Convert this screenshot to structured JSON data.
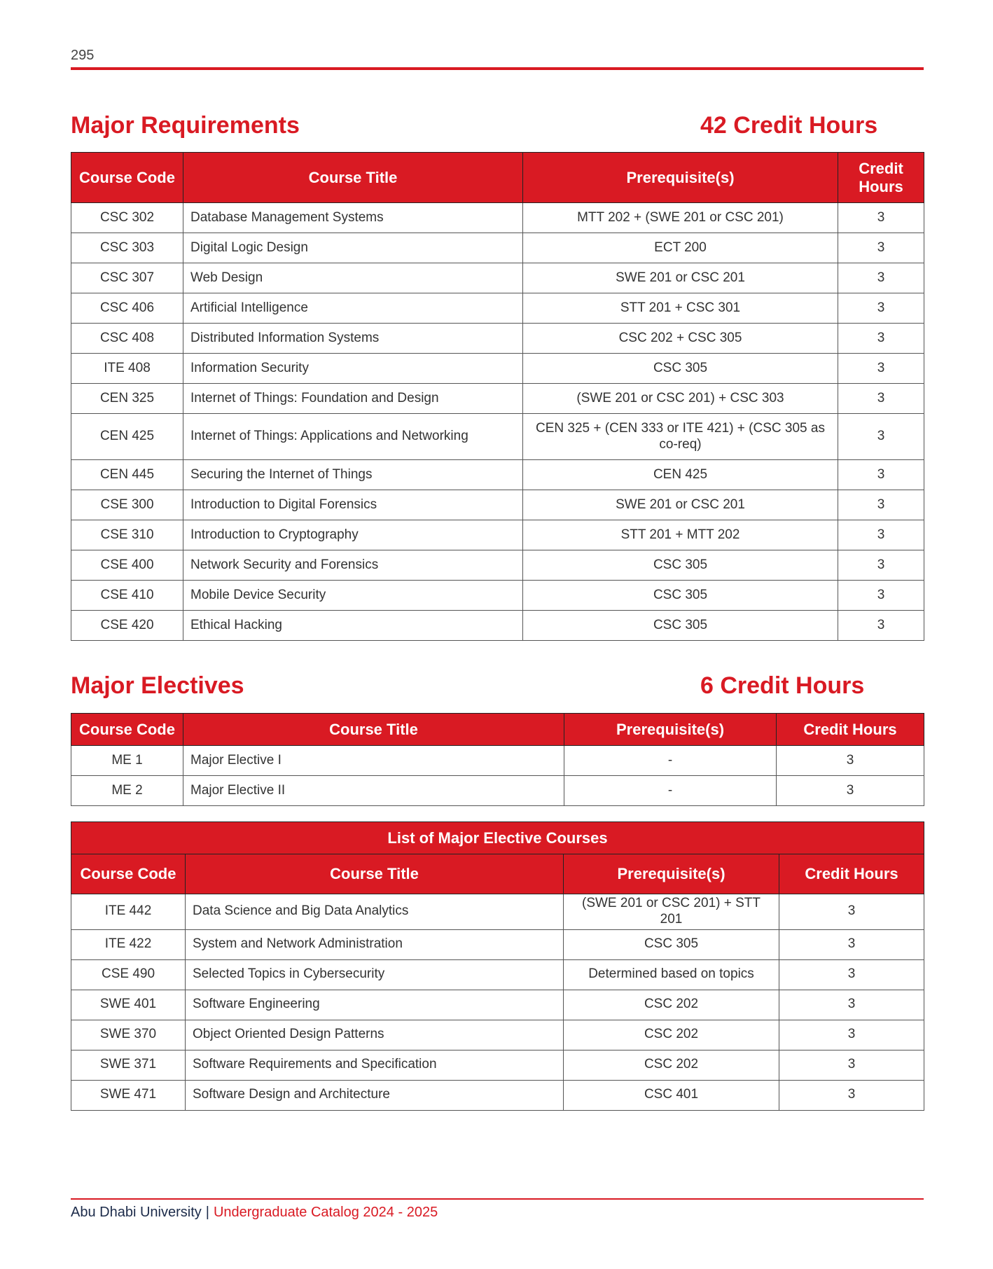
{
  "page_number": "295",
  "colors": {
    "accent": "#d91a23",
    "footer_text": "#1c2b4a"
  },
  "major_requirements": {
    "heading": "Major Requirements",
    "credit_hours": "42 Credit Hours",
    "columns": [
      "Course Code",
      "Course Title",
      "Prerequisite(s)",
      "Credit Hours"
    ],
    "rows": [
      [
        "CSC 302",
        "Database Management Systems",
        "MTT 202 + (SWE 201 or CSC 201)",
        "3"
      ],
      [
        "CSC 303",
        "Digital Logic Design",
        "ECT 200",
        "3"
      ],
      [
        "CSC 307",
        "Web Design",
        "SWE 201 or CSC 201",
        "3"
      ],
      [
        "CSC 406",
        "Artificial Intelligence",
        "STT 201 + CSC 301",
        "3"
      ],
      [
        "CSC 408",
        "Distributed Information Systems",
        "CSC 202 + CSC 305",
        "3"
      ],
      [
        "ITE 408",
        "Information Security",
        "CSC 305",
        "3"
      ],
      [
        "CEN 325",
        "Internet of Things: Foundation and Design",
        "(SWE 201 or CSC 201) + CSC 303",
        "3"
      ],
      [
        "CEN 425",
        "Internet of Things: Applications and Networking",
        "CEN 325 + (CEN 333 or ITE 421) + (CSC 305 as co-req)",
        "3"
      ],
      [
        "CEN 445",
        "Securing the Internet of Things",
        "CEN 425",
        "3"
      ],
      [
        "CSE 300",
        "Introduction to Digital Forensics",
        "SWE 201 or CSC 201",
        "3"
      ],
      [
        "CSE 310",
        "Introduction to Cryptography",
        "STT 201 + MTT 202",
        "3"
      ],
      [
        "CSE 400",
        "Network Security and Forensics",
        "CSC 305",
        "3"
      ],
      [
        "CSE 410",
        "Mobile Device Security",
        "CSC 305",
        "3"
      ],
      [
        "CSE 420",
        "Ethical Hacking",
        "CSC 305",
        "3"
      ]
    ]
  },
  "major_electives": {
    "heading": "Major Electives",
    "credit_hours": "6 Credit Hours",
    "columns": [
      "Course Code",
      "Course Title",
      "Prerequisite(s)",
      "Credit Hours"
    ],
    "rows": [
      [
        "ME 1",
        "Major Elective I",
        "-",
        "3"
      ],
      [
        "ME 2",
        "Major Elective II",
        "-",
        "3"
      ]
    ]
  },
  "elective_list": {
    "title": "List of Major Elective Courses",
    "columns": [
      "Course Code",
      "Course Title",
      "Prerequisite(s)",
      "Credit Hours"
    ],
    "rows": [
      [
        "ITE 442",
        "Data Science and Big Data Analytics",
        "(SWE 201 or CSC 201) + STT 201",
        "3"
      ],
      [
        "ITE 422",
        "System and Network Administration",
        "CSC 305",
        "3"
      ],
      [
        "CSE 490",
        "Selected Topics in Cybersecurity",
        "Determined based on topics",
        "3"
      ],
      [
        "SWE 401",
        "Software Engineering",
        "CSC 202",
        "3"
      ],
      [
        "SWE 370",
        "Object Oriented Design Patterns",
        "CSC 202",
        "3"
      ],
      [
        "SWE 371",
        "Software Requirements and Specification",
        "CSC 202",
        "3"
      ],
      [
        "SWE 471",
        "Software Design and Architecture",
        "CSC 401",
        "3"
      ]
    ]
  },
  "footer": {
    "university": "Abu Dhabi University",
    "separator": "|",
    "catalog": "Undergraduate Catalog 2024 - 2025"
  }
}
